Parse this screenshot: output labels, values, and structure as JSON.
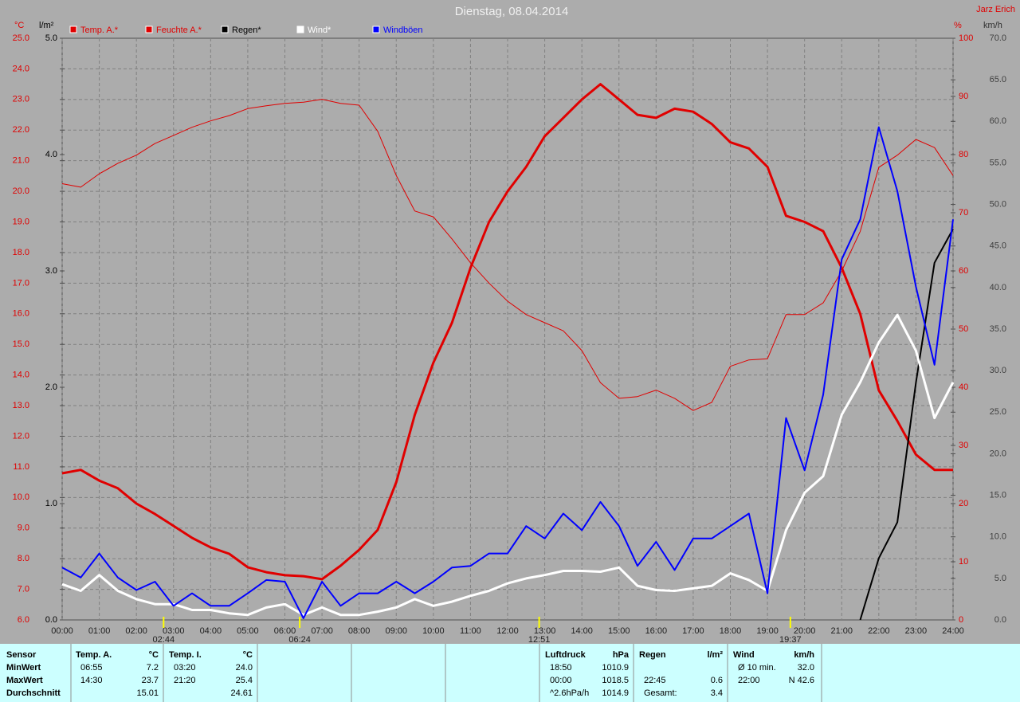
{
  "chart_data": {
    "type": "line",
    "title": "Dienstag, 08.04.2014",
    "author": "Jarz Erich",
    "y_unit": "°C",
    "y3_unit": "l/m²",
    "y2_unit": "%",
    "y4_unit": "km/h",
    "grid": true,
    "x": [
      0,
      0.5,
      1,
      1.5,
      2,
      2.5,
      3,
      3.5,
      4,
      4.5,
      5,
      5.5,
      6,
      6.5,
      7,
      7.5,
      8,
      8.5,
      9,
      9.5,
      10,
      10.5,
      11,
      11.5,
      12,
      12.5,
      13,
      13.5,
      14,
      14.5,
      15,
      15.5,
      16,
      16.5,
      17,
      17.5,
      18,
      18.5,
      19,
      19.5,
      20,
      20.5,
      21,
      21.5,
      22,
      22.5,
      23,
      23.5,
      24
    ],
    "xlim": [
      0,
      24
    ],
    "xticks": [
      {
        "value": 0,
        "label": "00:00"
      },
      {
        "value": 1,
        "label": "01:00"
      },
      {
        "value": 2,
        "label": "02:00"
      },
      {
        "value": 3,
        "label": "03:00"
      },
      {
        "value": 4,
        "label": "04:00"
      },
      {
        "value": 5,
        "label": "05:00"
      },
      {
        "value": 6,
        "label": "06:00"
      },
      {
        "value": 7,
        "label": "07:00"
      },
      {
        "value": 8,
        "label": "08:00"
      },
      {
        "value": 9,
        "label": "09:00"
      },
      {
        "value": 10,
        "label": "10:00"
      },
      {
        "value": 11,
        "label": "11:00"
      },
      {
        "value": 12,
        "label": "12:00"
      },
      {
        "value": 13,
        "label": "13:00"
      },
      {
        "value": 14,
        "label": "14:00"
      },
      {
        "value": 15,
        "label": "15:00"
      },
      {
        "value": 16,
        "label": "16:00"
      },
      {
        "value": 17,
        "label": "17:00"
      },
      {
        "value": 18,
        "label": "18:00"
      },
      {
        "value": 19,
        "label": "19:00"
      },
      {
        "value": 20,
        "label": "20:00"
      },
      {
        "value": 21,
        "label": "21:00"
      },
      {
        "value": 22,
        "label": "22:00"
      },
      {
        "value": 23,
        "label": "23:00"
      },
      {
        "value": 24,
        "label": "24:00"
      }
    ],
    "ylim": [
      6,
      25
    ],
    "yticks": [
      {
        "value": 6,
        "label": "6.0"
      },
      {
        "value": 7,
        "label": "7.0"
      },
      {
        "value": 8,
        "label": "8.0"
      },
      {
        "value": 9,
        "label": "9.0"
      },
      {
        "value": 10,
        "label": "10.0"
      },
      {
        "value": 11,
        "label": "11.0"
      },
      {
        "value": 12,
        "label": "12.0"
      },
      {
        "value": 13,
        "label": "13.0"
      },
      {
        "value": 14,
        "label": "14.0"
      },
      {
        "value": 15,
        "label": "15.0"
      },
      {
        "value": 16,
        "label": "16.0"
      },
      {
        "value": 17,
        "label": "17.0"
      },
      {
        "value": 18,
        "label": "18.0"
      },
      {
        "value": 19,
        "label": "19.0"
      },
      {
        "value": 20,
        "label": "20.0"
      },
      {
        "value": 21,
        "label": "21.0"
      },
      {
        "value": 22,
        "label": "22.0"
      },
      {
        "value": 23,
        "label": "23.0"
      },
      {
        "value": 24,
        "label": "24.0"
      },
      {
        "value": 25,
        "label": "25.0"
      }
    ],
    "y3lim": [
      0,
      5
    ],
    "y3ticks": [
      {
        "value": 0,
        "label": "0.0"
      },
      {
        "value": 1,
        "label": "1.0"
      },
      {
        "value": 2,
        "label": "2.0"
      },
      {
        "value": 3,
        "label": "3.0"
      },
      {
        "value": 4,
        "label": "4.0"
      },
      {
        "value": 5,
        "label": "5.0"
      }
    ],
    "y2lim": [
      0,
      100
    ],
    "y2ticks": [
      0,
      10,
      20,
      30,
      40,
      50,
      60,
      70,
      80,
      90,
      100
    ],
    "y4lim": [
      0,
      70
    ],
    "y4ticks": [
      {
        "value": 0,
        "label": "0.0"
      },
      {
        "value": 5,
        "label": "5.0"
      },
      {
        "value": 10,
        "label": "10.0"
      },
      {
        "value": 15,
        "label": "15.0"
      },
      {
        "value": 20,
        "label": "20.0"
      },
      {
        "value": 25,
        "label": "25.0"
      },
      {
        "value": 30,
        "label": "30.0"
      },
      {
        "value": 35,
        "label": "35.0"
      },
      {
        "value": 40,
        "label": "40.0"
      },
      {
        "value": 45,
        "label": "45.0"
      },
      {
        "value": 50,
        "label": "50.0"
      },
      {
        "value": 55,
        "label": "55.0"
      },
      {
        "value": 60,
        "label": "60.0"
      },
      {
        "value": 65,
        "label": "65.0"
      },
      {
        "value": 70,
        "label": "70.0"
      }
    ],
    "series": [
      {
        "name": "Temp. A.*",
        "color": "#e00000",
        "line_width": 3,
        "axis": "y",
        "values": [
          10.79,
          10.9,
          10.55,
          10.3,
          9.8,
          9.46,
          9.07,
          8.68,
          8.37,
          8.16,
          7.72,
          7.56,
          7.46,
          7.43,
          7.33,
          7.77,
          8.29,
          8.94,
          10.5,
          12.7,
          14.4,
          15.7,
          17.5,
          19.0,
          20.0,
          20.8,
          21.8,
          22.4,
          23.0,
          23.5,
          23.0,
          22.5,
          22.4,
          22.7,
          22.6,
          22.2,
          21.6,
          21.4,
          20.8,
          19.2,
          19.0,
          18.7,
          17.5,
          16.0,
          13.5,
          12.5,
          11.4,
          10.9,
          10.9
        ]
      },
      {
        "name": "Feuchte A.*",
        "color": "#e00000",
        "line_width": 1,
        "axis": "y2",
        "values": [
          75,
          74.4,
          76.7,
          78.5,
          79.9,
          81.9,
          83.3,
          84.7,
          85.8,
          86.7,
          87.9,
          88.4,
          88.8,
          89.0,
          89.5,
          88.8,
          88.5,
          84.0,
          76.4,
          70.3,
          69.3,
          65.5,
          61.4,
          57.9,
          54.8,
          52.5,
          51.1,
          49.7,
          46.3,
          40.8,
          38.1,
          38.4,
          39.5,
          38.1,
          36.0,
          37.4,
          43.6,
          44.7,
          44.9,
          52.5,
          52.5,
          54.5,
          60.0,
          66.8,
          77.8,
          79.9,
          82.6,
          81.2,
          76.4
        ]
      },
      {
        "name": "Regen*",
        "color": "#000000",
        "line_width": 2,
        "axis": "y3",
        "values": [
          null,
          null,
          null,
          null,
          null,
          null,
          null,
          null,
          null,
          null,
          null,
          null,
          null,
          null,
          null,
          null,
          null,
          null,
          null,
          null,
          null,
          null,
          null,
          null,
          null,
          null,
          null,
          null,
          null,
          null,
          null,
          null,
          null,
          null,
          null,
          null,
          null,
          null,
          null,
          null,
          null,
          null,
          null,
          0,
          0.53,
          0.84,
          2.04,
          3.07,
          3.36
        ]
      },
      {
        "name": "Wind*",
        "color": "#ffffff",
        "line_width": 3,
        "axis": "y4",
        "values": [
          4.3,
          3.5,
          5.4,
          3.5,
          2.5,
          1.9,
          1.9,
          1.2,
          1.2,
          0.8,
          0.6,
          1.5,
          1.9,
          0.6,
          1.5,
          0.6,
          0.6,
          1.0,
          1.5,
          2.5,
          1.7,
          2.2,
          2.9,
          3.5,
          4.4,
          5.0,
          5.4,
          5.9,
          5.9,
          5.8,
          6.3,
          4.1,
          3.6,
          3.5,
          3.8,
          4.1,
          5.6,
          4.8,
          3.5,
          10.8,
          15.3,
          17.3,
          24.7,
          28.6,
          33.4,
          36.7,
          32.4,
          24.3,
          28.6
        ]
      },
      {
        "name": "Windböen",
        "color": "#0000ff",
        "line_width": 2,
        "axis": "y4",
        "values": [
          6.3,
          5.1,
          8.0,
          5.1,
          3.6,
          4.6,
          1.7,
          3.2,
          1.7,
          1.7,
          3.2,
          4.8,
          4.6,
          0.2,
          4.6,
          1.7,
          3.2,
          3.2,
          4.6,
          3.2,
          4.6,
          6.3,
          6.5,
          8.0,
          8.0,
          11.3,
          9.8,
          12.8,
          10.8,
          14.2,
          11.3,
          6.5,
          9.4,
          6.0,
          9.8,
          9.8,
          11.3,
          12.8,
          3.2,
          24.3,
          18.0,
          27.1,
          43.4,
          48.2,
          59.3,
          51.6,
          40.1,
          30.7,
          48.2
        ]
      }
    ],
    "annotations": [
      {
        "x": 2.733,
        "label": "02:44"
      },
      {
        "x": 6.4,
        "label": "06:24"
      },
      {
        "x": 12.85,
        "label": "12:51"
      },
      {
        "x": 19.617,
        "label": "19:37"
      }
    ]
  },
  "stats": {
    "labels": [
      "Sensor",
      "MinWert",
      "MaxWert",
      "Durchschnitt"
    ],
    "blocks": [
      {
        "name": "Temp. A.",
        "unit": "°C",
        "rows": [
          [
            "06:55",
            "7.2"
          ],
          [
            "14:30",
            "23.7"
          ],
          [
            "15.01"
          ]
        ]
      },
      {
        "name": "Temp. I.",
        "unit": "°C",
        "rows": [
          [
            "03:20",
            "24.0"
          ],
          [
            "21:20",
            "25.4"
          ],
          [
            "24.61"
          ]
        ]
      },
      {
        "name": "Luftdruck",
        "unit": "hPa",
        "rows": [
          [
            "18:50",
            "1010.9"
          ],
          [
            "00:00",
            "1018.5"
          ],
          [
            "^2.6hPa/h",
            "1014.9"
          ]
        ]
      },
      {
        "name": "Regen",
        "unit": "l/m²",
        "rows": [
          null,
          [
            "22:45",
            "0.6"
          ],
          [
            "Gesamt:",
            "3.4"
          ]
        ]
      },
      {
        "name": "Wind",
        "unit": "km/h",
        "rows": [
          [
            "Ø 10 min.",
            "32.0"
          ],
          [
            "22:00",
            "N 42.6"
          ]
        ]
      }
    ]
  }
}
